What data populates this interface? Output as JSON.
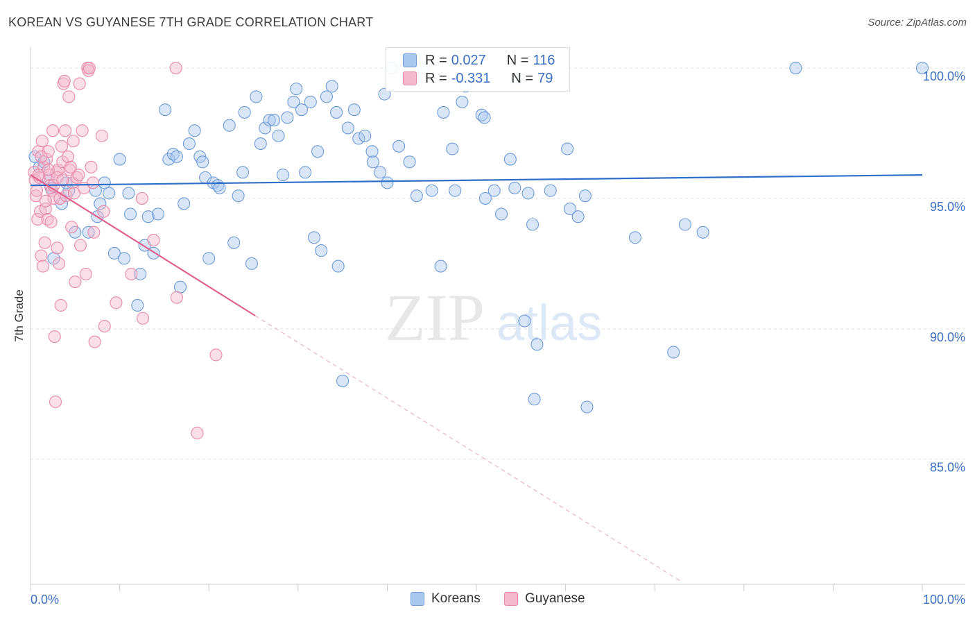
{
  "title": "KOREAN VS GUYANESE 7TH GRADE CORRELATION CHART",
  "source": "Source: ZipAtlas.com",
  "watermark": {
    "zip": "ZIP",
    "atlas": "atlas"
  },
  "legend_top": {
    "rows": [
      {
        "r_label": "R =",
        "r_value": "0.027",
        "n_label": "N =",
        "n_value": "116",
        "color": "#a9c8f0",
        "border": "#6f9ad8"
      },
      {
        "r_label": "R =",
        "r_value": "-0.331",
        "n_label": "N =",
        "n_value": "79",
        "color": "#f5b8cc",
        "border": "#e88aa9"
      }
    ]
  },
  "legend_bottom": [
    {
      "label": "Koreans",
      "color": "#a9c8f0",
      "border": "#6f9ad8"
    },
    {
      "label": "Guyanese",
      "color": "#f5b8cc",
      "border": "#e88aa9"
    }
  ],
  "chart_data": {
    "type": "scatter",
    "title": "KOREAN VS GUYANESE 7TH GRADE CORRELATION CHART",
    "xlabel": "",
    "ylabel": "7th Grade",
    "xlim": [
      0,
      100
    ],
    "ylim": [
      80.2,
      100.8
    ],
    "x_tick_labels": [
      "0.0%",
      "100.0%"
    ],
    "y_ticks": [
      85,
      90,
      95,
      100
    ],
    "y_tick_labels": [
      "85.0%",
      "90.0%",
      "95.0%",
      "100.0%"
    ],
    "grid": true,
    "legend": "top-center",
    "series": [
      {
        "name": "Koreans",
        "color": "#6f9ad8",
        "fill": "#a9c8f0",
        "trend": {
          "x": [
            0,
            100
          ],
          "y": [
            95.5,
            95.9
          ],
          "style": "solid"
        },
        "points": [
          [
            0.5,
            96.6
          ],
          [
            1.0,
            96.2
          ],
          [
            1.5,
            96.4
          ],
          [
            2.0,
            95.7
          ],
          [
            2.3,
            95.4
          ],
          [
            2.6,
            92.7
          ],
          [
            3.5,
            94.8
          ],
          [
            4.0,
            95.6
          ],
          [
            4.3,
            95.3
          ],
          [
            5.0,
            93.7
          ],
          [
            6.5,
            93.7
          ],
          [
            7.3,
            95.3
          ],
          [
            7.5,
            94.3
          ],
          [
            7.8,
            94.8
          ],
          [
            8.3,
            95.6
          ],
          [
            8.8,
            95.2
          ],
          [
            9.4,
            92.9
          ],
          [
            10.0,
            96.5
          ],
          [
            10.5,
            92.7
          ],
          [
            11.0,
            95.2
          ],
          [
            11.2,
            94.4
          ],
          [
            12.0,
            90.9
          ],
          [
            12.3,
            92.1
          ],
          [
            12.8,
            93.2
          ],
          [
            13.2,
            94.3
          ],
          [
            13.8,
            92.9
          ],
          [
            14.3,
            94.4
          ],
          [
            15.1,
            98.4
          ],
          [
            15.5,
            96.5
          ],
          [
            16.0,
            96.7
          ],
          [
            16.4,
            96.6
          ],
          [
            16.8,
            91.6
          ],
          [
            17.2,
            94.8
          ],
          [
            17.8,
            97.1
          ],
          [
            18.4,
            97.6
          ],
          [
            19.0,
            96.6
          ],
          [
            19.3,
            96.4
          ],
          [
            19.6,
            95.8
          ],
          [
            20.0,
            92.7
          ],
          [
            20.5,
            95.6
          ],
          [
            21.0,
            95.5
          ],
          [
            21.2,
            95.4
          ],
          [
            22.3,
            97.8
          ],
          [
            22.8,
            93.3
          ],
          [
            23.3,
            95.1
          ],
          [
            23.8,
            96.0
          ],
          [
            24.0,
            98.3
          ],
          [
            24.8,
            92.5
          ],
          [
            25.3,
            98.9
          ],
          [
            25.8,
            97.1
          ],
          [
            26.3,
            97.7
          ],
          [
            26.8,
            98.0
          ],
          [
            27.3,
            98.0
          ],
          [
            27.8,
            97.4
          ],
          [
            28.3,
            95.9
          ],
          [
            28.8,
            98.1
          ],
          [
            29.5,
            98.7
          ],
          [
            29.8,
            99.2
          ],
          [
            30.4,
            98.4
          ],
          [
            30.8,
            96.0
          ],
          [
            31.4,
            98.7
          ],
          [
            31.8,
            93.5
          ],
          [
            32.2,
            96.8
          ],
          [
            32.6,
            93.0
          ],
          [
            33.2,
            98.9
          ],
          [
            33.8,
            99.3
          ],
          [
            34.3,
            98.3
          ],
          [
            34.5,
            92.4
          ],
          [
            35.0,
            88.0
          ],
          [
            35.6,
            97.7
          ],
          [
            36.3,
            98.4
          ],
          [
            36.8,
            97.3
          ],
          [
            37.5,
            97.4
          ],
          [
            38.3,
            96.8
          ],
          [
            38.4,
            96.4
          ],
          [
            39.2,
            96.0
          ],
          [
            39.7,
            99.0
          ],
          [
            40.0,
            95.6
          ],
          [
            40.5,
            100.0
          ],
          [
            41.3,
            97.0
          ],
          [
            42.5,
            96.4
          ],
          [
            43.3,
            95.1
          ],
          [
            45.0,
            95.3
          ],
          [
            46.0,
            92.4
          ],
          [
            46.3,
            98.3
          ],
          [
            47.3,
            96.9
          ],
          [
            47.6,
            95.3
          ],
          [
            48.4,
            98.7
          ],
          [
            48.8,
            99.3
          ],
          [
            50.6,
            98.2
          ],
          [
            50.9,
            98.1
          ],
          [
            51.0,
            95.0
          ],
          [
            52.0,
            95.3
          ],
          [
            52.8,
            94.4
          ],
          [
            53.8,
            96.5
          ],
          [
            54.3,
            95.4
          ],
          [
            54.6,
            99.6
          ],
          [
            55.4,
            90.3
          ],
          [
            55.8,
            95.2
          ],
          [
            56.3,
            94.0
          ],
          [
            56.5,
            87.3
          ],
          [
            56.8,
            89.4
          ],
          [
            58.3,
            95.3
          ],
          [
            60.2,
            96.9
          ],
          [
            60.5,
            94.6
          ],
          [
            61.4,
            94.3
          ],
          [
            62.2,
            95.1
          ],
          [
            62.4,
            87.0
          ],
          [
            67.8,
            93.5
          ],
          [
            72.1,
            89.1
          ],
          [
            73.4,
            94.0
          ],
          [
            75.4,
            93.7
          ],
          [
            85.8,
            100.0
          ],
          [
            100.0,
            100.0
          ],
          [
            44.0,
            100.0
          ]
        ]
      },
      {
        "name": "Guyanese",
        "color": "#e88aa9",
        "fill": "#f5b8cc",
        "trend": {
          "x": [
            0,
            25.2
          ],
          "y": [
            95.9,
            90.5
          ],
          "style": "solid",
          "extension": {
            "x": [
              25.2,
              73.0
            ],
            "y": [
              90.5,
              80.3
            ]
          }
        },
        "points": [
          [
            0.4,
            96.0
          ],
          [
            0.5,
            95.7
          ],
          [
            0.6,
            95.1
          ],
          [
            0.8,
            94.2
          ],
          [
            0.9,
            96.8
          ],
          [
            1.0,
            95.8
          ],
          [
            1.1,
            94.5
          ],
          [
            1.2,
            92.8
          ],
          [
            1.3,
            97.2
          ],
          [
            1.4,
            92.4
          ],
          [
            1.5,
            96.2
          ],
          [
            1.6,
            93.3
          ],
          [
            1.7,
            94.6
          ],
          [
            1.8,
            96.5
          ],
          [
            1.9,
            94.2
          ],
          [
            2.0,
            96.8
          ],
          [
            2.1,
            95.9
          ],
          [
            2.2,
            95.5
          ],
          [
            2.3,
            94.1
          ],
          [
            2.4,
            95.3
          ],
          [
            2.5,
            97.6
          ],
          [
            2.6,
            95.0
          ],
          [
            2.7,
            89.7
          ],
          [
            2.8,
            87.2
          ],
          [
            2.9,
            96.0
          ],
          [
            3.0,
            93.1
          ],
          [
            3.1,
            96.1
          ],
          [
            3.2,
            92.5
          ],
          [
            3.3,
            95.0
          ],
          [
            3.4,
            90.9
          ],
          [
            3.5,
            97.0
          ],
          [
            3.6,
            96.4
          ],
          [
            3.7,
            99.4
          ],
          [
            3.8,
            99.5
          ],
          [
            3.9,
            97.6
          ],
          [
            4.0,
            95.1
          ],
          [
            4.2,
            96.6
          ],
          [
            4.3,
            98.9
          ],
          [
            4.4,
            96.1
          ],
          [
            4.5,
            96.2
          ],
          [
            4.6,
            93.9
          ],
          [
            4.7,
            95.6
          ],
          [
            4.8,
            97.2
          ],
          [
            4.9,
            95.2
          ],
          [
            5.0,
            91.8
          ],
          [
            5.2,
            95.8
          ],
          [
            5.4,
            95.9
          ],
          [
            5.5,
            99.4
          ],
          [
            5.6,
            93.2
          ],
          [
            5.8,
            97.6
          ],
          [
            6.0,
            95.4
          ],
          [
            6.2,
            92.1
          ],
          [
            6.4,
            100.0
          ],
          [
            6.5,
            99.9
          ],
          [
            6.6,
            100.0
          ],
          [
            6.8,
            96.2
          ],
          [
            7.0,
            95.6
          ],
          [
            7.1,
            93.7
          ],
          [
            7.2,
            89.5
          ],
          [
            8.0,
            97.4
          ],
          [
            8.2,
            94.5
          ],
          [
            8.3,
            90.1
          ],
          [
            9.6,
            91.0
          ],
          [
            11.3,
            92.1
          ],
          [
            12.5,
            95.0
          ],
          [
            12.6,
            90.4
          ],
          [
            13.8,
            93.4
          ],
          [
            16.3,
            100.0
          ],
          [
            16.4,
            91.2
          ],
          [
            18.7,
            86.0
          ],
          [
            20.8,
            89.0
          ],
          [
            0.7,
            95.3
          ],
          [
            1.7,
            94.9
          ],
          [
            2.0,
            96.1
          ],
          [
            2.6,
            95.5
          ],
          [
            3.0,
            95.8
          ],
          [
            3.6,
            95.7
          ],
          [
            1.2,
            96.6
          ],
          [
            0.9,
            95.9
          ]
        ]
      }
    ]
  }
}
